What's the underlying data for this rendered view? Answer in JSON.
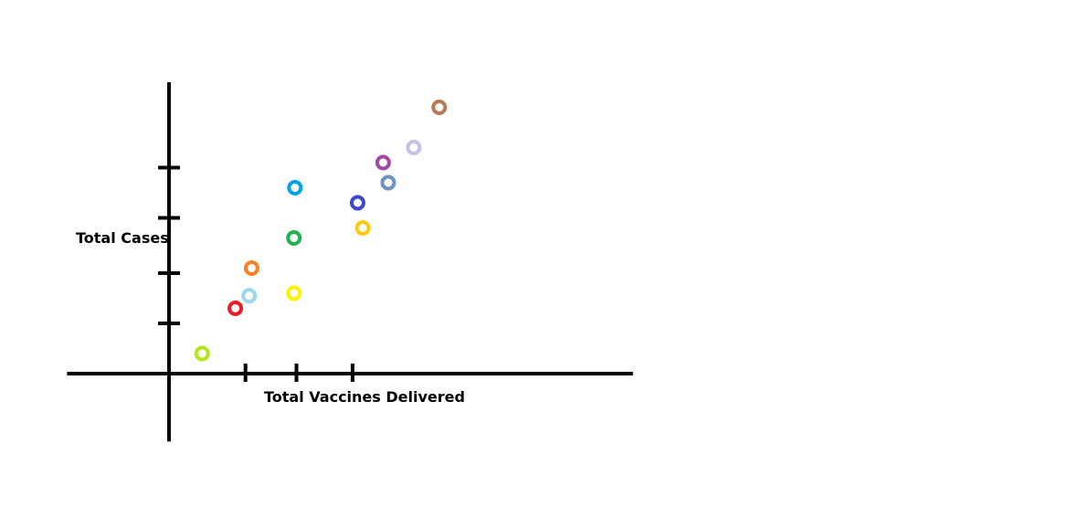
{
  "chart_data": {
    "type": "scatter",
    "title": "",
    "xlabel": "Total Vaccines Delivered",
    "ylabel": "Total Cases",
    "grid": false,
    "legend": "none",
    "x_ticks": [
      1.5,
      2.5,
      3.6
    ],
    "y_ticks": [
      1,
      2,
      3.1,
      4.1
    ],
    "xlim": [
      -2,
      9.1
    ],
    "ylim": [
      -1.35,
      5.8
    ],
    "points": [
      {
        "x": 0.65,
        "y": 0.4,
        "color": "#b5e61d"
      },
      {
        "x": 1.3,
        "y": 1.3,
        "color": "#ed1c24"
      },
      {
        "x": 1.57,
        "y": 1.55,
        "color": "#99d9ea"
      },
      {
        "x": 1.62,
        "y": 2.1,
        "color": "#ff7f27"
      },
      {
        "x": 2.45,
        "y": 1.6,
        "color": "#fff200"
      },
      {
        "x": 2.45,
        "y": 2.7,
        "color": "#22b14c"
      },
      {
        "x": 2.47,
        "y": 3.7,
        "color": "#00a2e8"
      },
      {
        "x": 3.7,
        "y": 3.4,
        "color": "#3f48cc"
      },
      {
        "x": 3.8,
        "y": 2.9,
        "color": "#ffc90e"
      },
      {
        "x": 4.3,
        "y": 3.8,
        "color": "#7092be"
      },
      {
        "x": 4.2,
        "y": 4.2,
        "color": "#a349a4"
      },
      {
        "x": 4.8,
        "y": 4.5,
        "color": "#c8bfe7"
      },
      {
        "x": 5.3,
        "y": 5.3,
        "color": "#b97a57"
      }
    ]
  }
}
